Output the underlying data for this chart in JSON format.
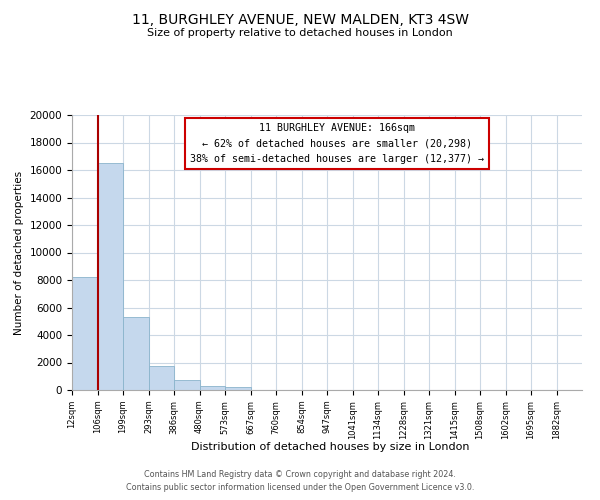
{
  "title": "11, BURGHLEY AVENUE, NEW MALDEN, KT3 4SW",
  "subtitle": "Size of property relative to detached houses in London",
  "xlabel": "Distribution of detached houses by size in London",
  "ylabel": "Number of detached properties",
  "bar_values": [
    8200,
    16500,
    5300,
    1750,
    750,
    280,
    200,
    0,
    0,
    0,
    0,
    0,
    0,
    0,
    0,
    0,
    0,
    0,
    0,
    0
  ],
  "bin_labels": [
    "12sqm",
    "106sqm",
    "199sqm",
    "293sqm",
    "386sqm",
    "480sqm",
    "573sqm",
    "667sqm",
    "760sqm",
    "854sqm",
    "947sqm",
    "1041sqm",
    "1134sqm",
    "1228sqm",
    "1321sqm",
    "1415sqm",
    "1508sqm",
    "1602sqm",
    "1695sqm",
    "1882sqm"
  ],
  "bar_color": "#c5d8ed",
  "bar_edge_color": "#8ab4cc",
  "vline_color": "#aa0000",
  "ylim": [
    0,
    20000
  ],
  "yticks": [
    0,
    2000,
    4000,
    6000,
    8000,
    10000,
    12000,
    14000,
    16000,
    18000,
    20000
  ],
  "annotation_title": "11 BURGHLEY AVENUE: 166sqm",
  "annotation_line1": "← 62% of detached houses are smaller (20,298)",
  "annotation_line2": "38% of semi-detached houses are larger (12,377) →",
  "annotation_box_color": "#ffffff",
  "annotation_box_edge": "#cc0000",
  "footer_line1": "Contains HM Land Registry data © Crown copyright and database right 2024.",
  "footer_line2": "Contains public sector information licensed under the Open Government Licence v3.0.",
  "background_color": "#ffffff",
  "grid_color": "#ccd8e4"
}
